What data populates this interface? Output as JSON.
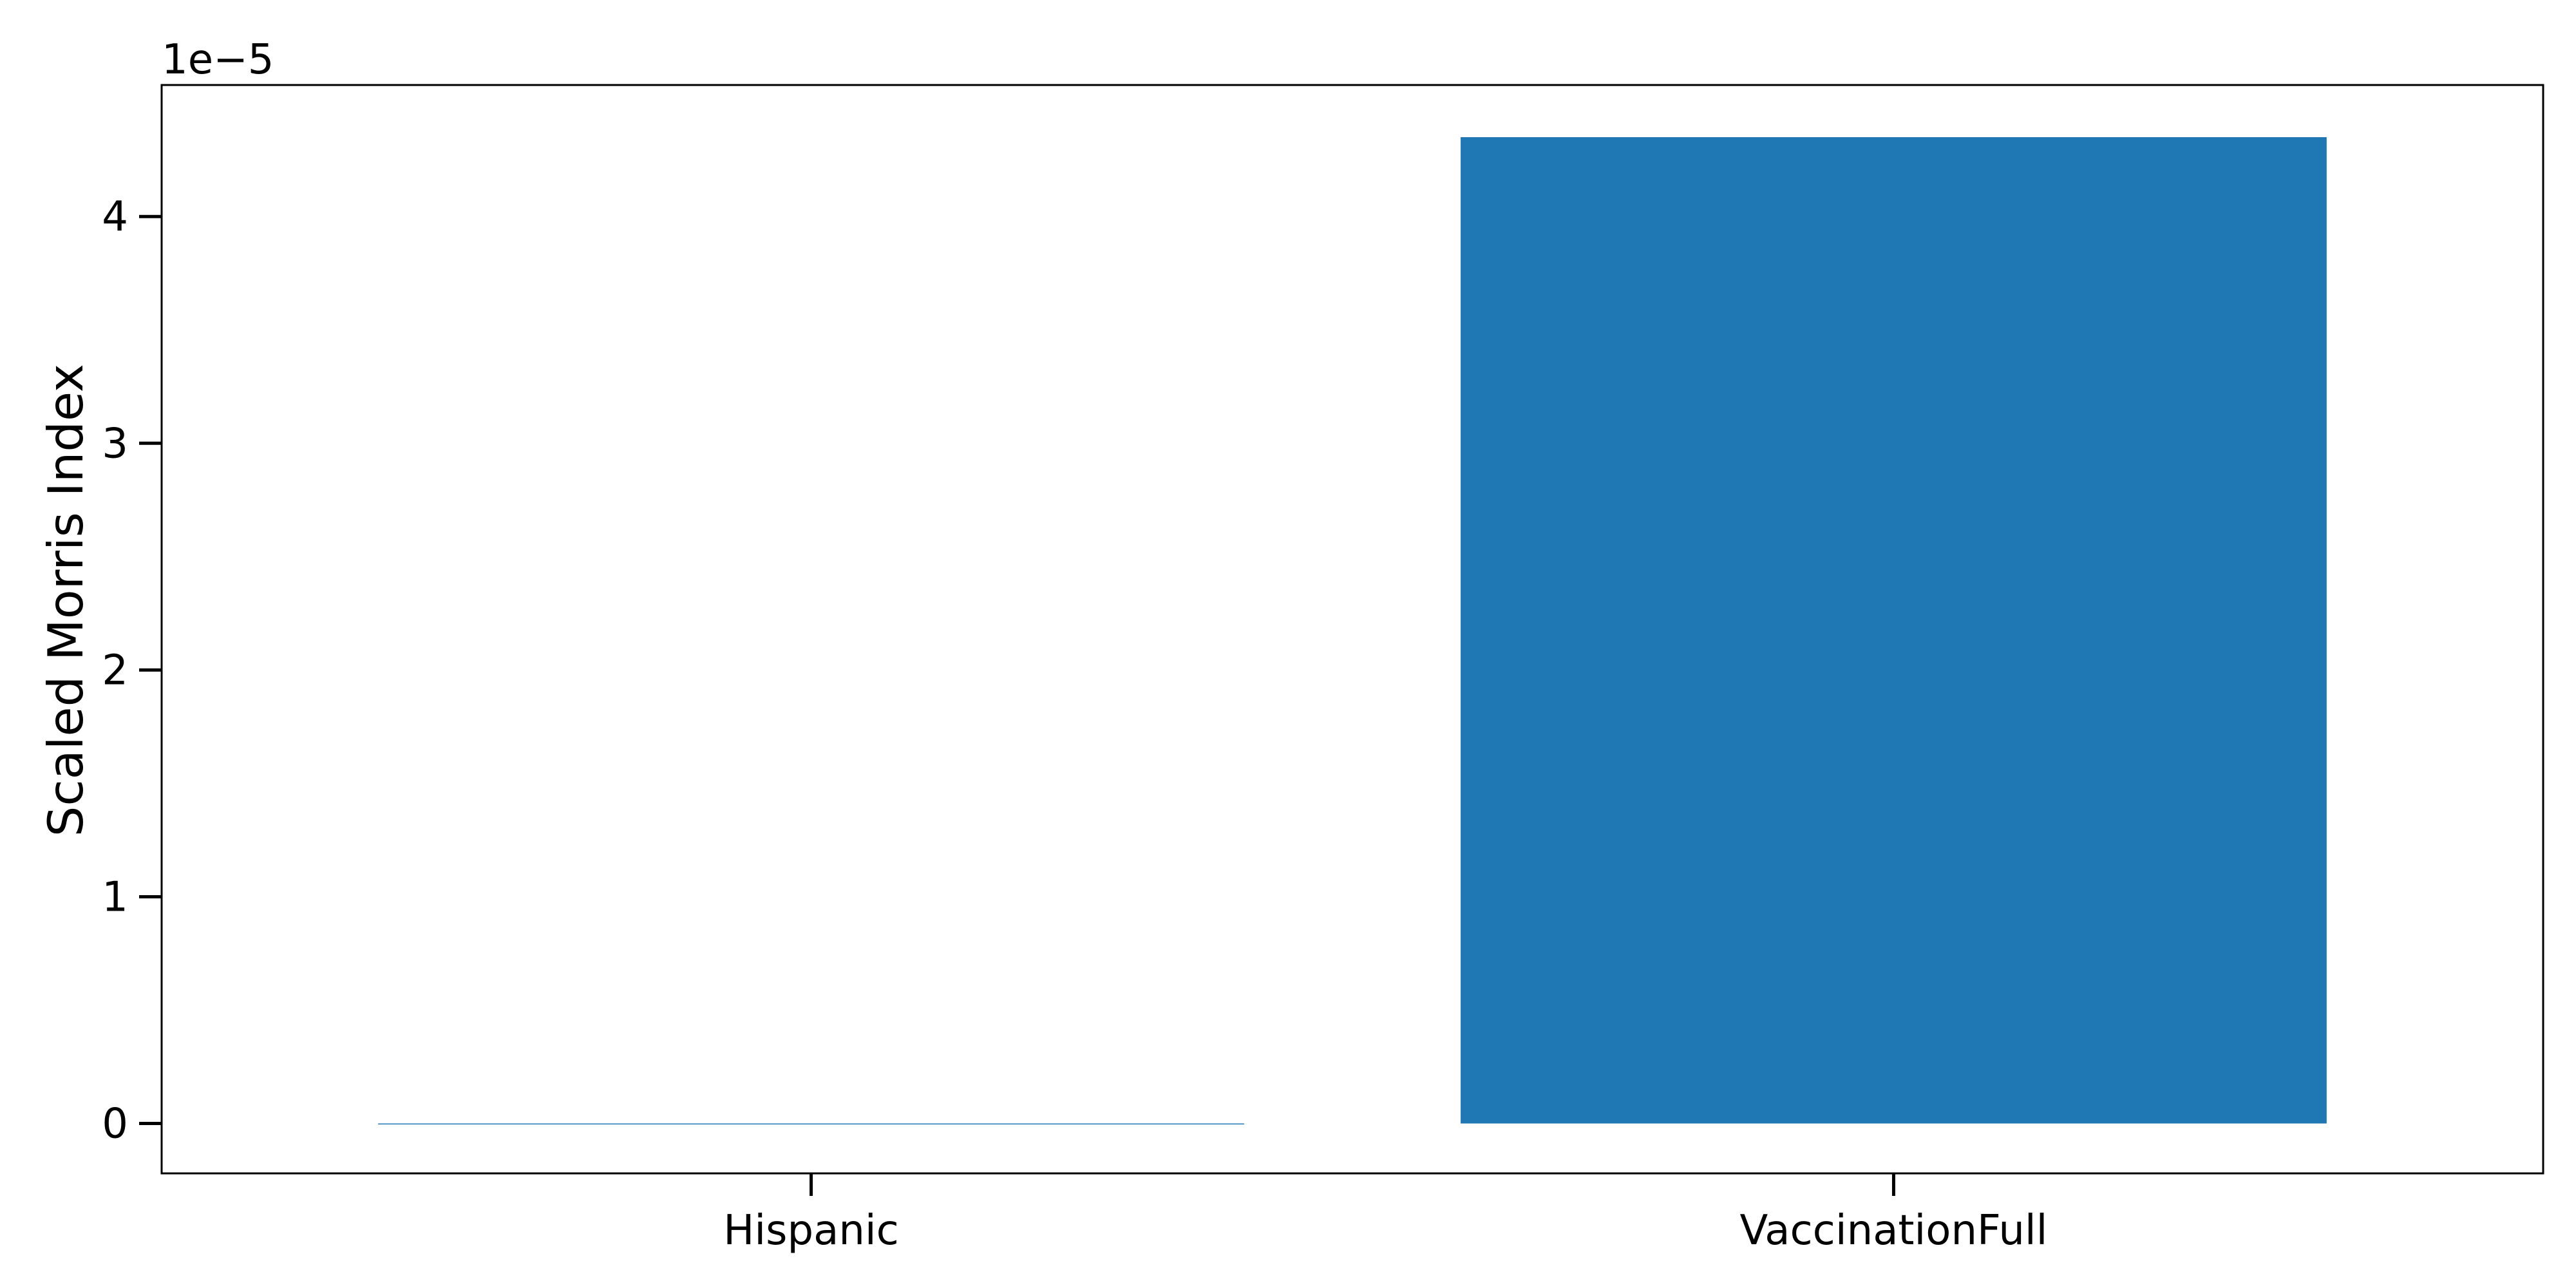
{
  "chart_data": {
    "type": "bar",
    "title": "",
    "xlabel": "",
    "ylabel": "Scaled Morris Index",
    "y_offset_label": "1e−5",
    "y_scale_multiplier": 1e-05,
    "categories": [
      "Hispanic",
      "VaccinationFull"
    ],
    "values": [
      0.0,
      4.35e-05
    ],
    "ylim": [
      -2.2e-06,
      4.58e-05
    ],
    "y_ticks": [
      0,
      1e-05,
      2e-05,
      3e-05,
      4e-05
    ],
    "y_tick_labels": [
      "0",
      "1",
      "2",
      "3",
      "4"
    ],
    "grid": false,
    "bar_color": "#1f77b4"
  }
}
